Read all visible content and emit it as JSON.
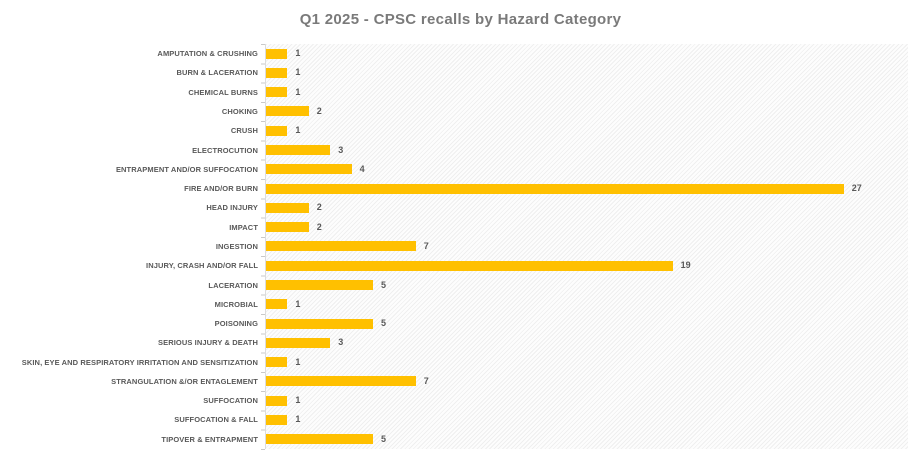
{
  "chart_data": {
    "type": "bar",
    "orientation": "horizontal",
    "title": "Q1 2025 - CPSC recalls by Hazard Category",
    "xlabel": "",
    "ylabel": "",
    "xlim": [
      0,
      30
    ],
    "gridlines": false,
    "legend_position": "none",
    "bar_color": "#FFC000",
    "categories": [
      "AMPUTATION & CRUSHING",
      "BURN & LACERATION",
      "CHEMICAL BURNS",
      "CHOKING",
      "CRUSH",
      "ELECTROCUTION",
      "ENTRAPMENT AND/OR SUFFOCATION",
      "FIRE AND/OR BURN",
      "HEAD INJURY",
      "IMPACT",
      "INGESTION",
      "INJURY, CRASH AND/OR FALL",
      "LACERATION",
      "MICROBIAL",
      "POISONING",
      "SERIOUS INJURY & DEATH",
      "SKIN, EYE AND RESPIRATORY IRRITATION AND SENSITIZATION",
      "STRANGULATION &/OR ENTAGLEMENT",
      "SUFFOCATION",
      "SUFFOCATION & FALL",
      "TIPOVER & ENTRAPMENT"
    ],
    "values": [
      1,
      1,
      1,
      2,
      1,
      3,
      4,
      27,
      2,
      2,
      7,
      19,
      5,
      1,
      5,
      3,
      1,
      7,
      1,
      1,
      5
    ]
  },
  "colors": {
    "bar": "#FFC000",
    "title_text": "#7A7A7A",
    "label_text": "#595959",
    "axis_line": "#DCDCDC"
  }
}
